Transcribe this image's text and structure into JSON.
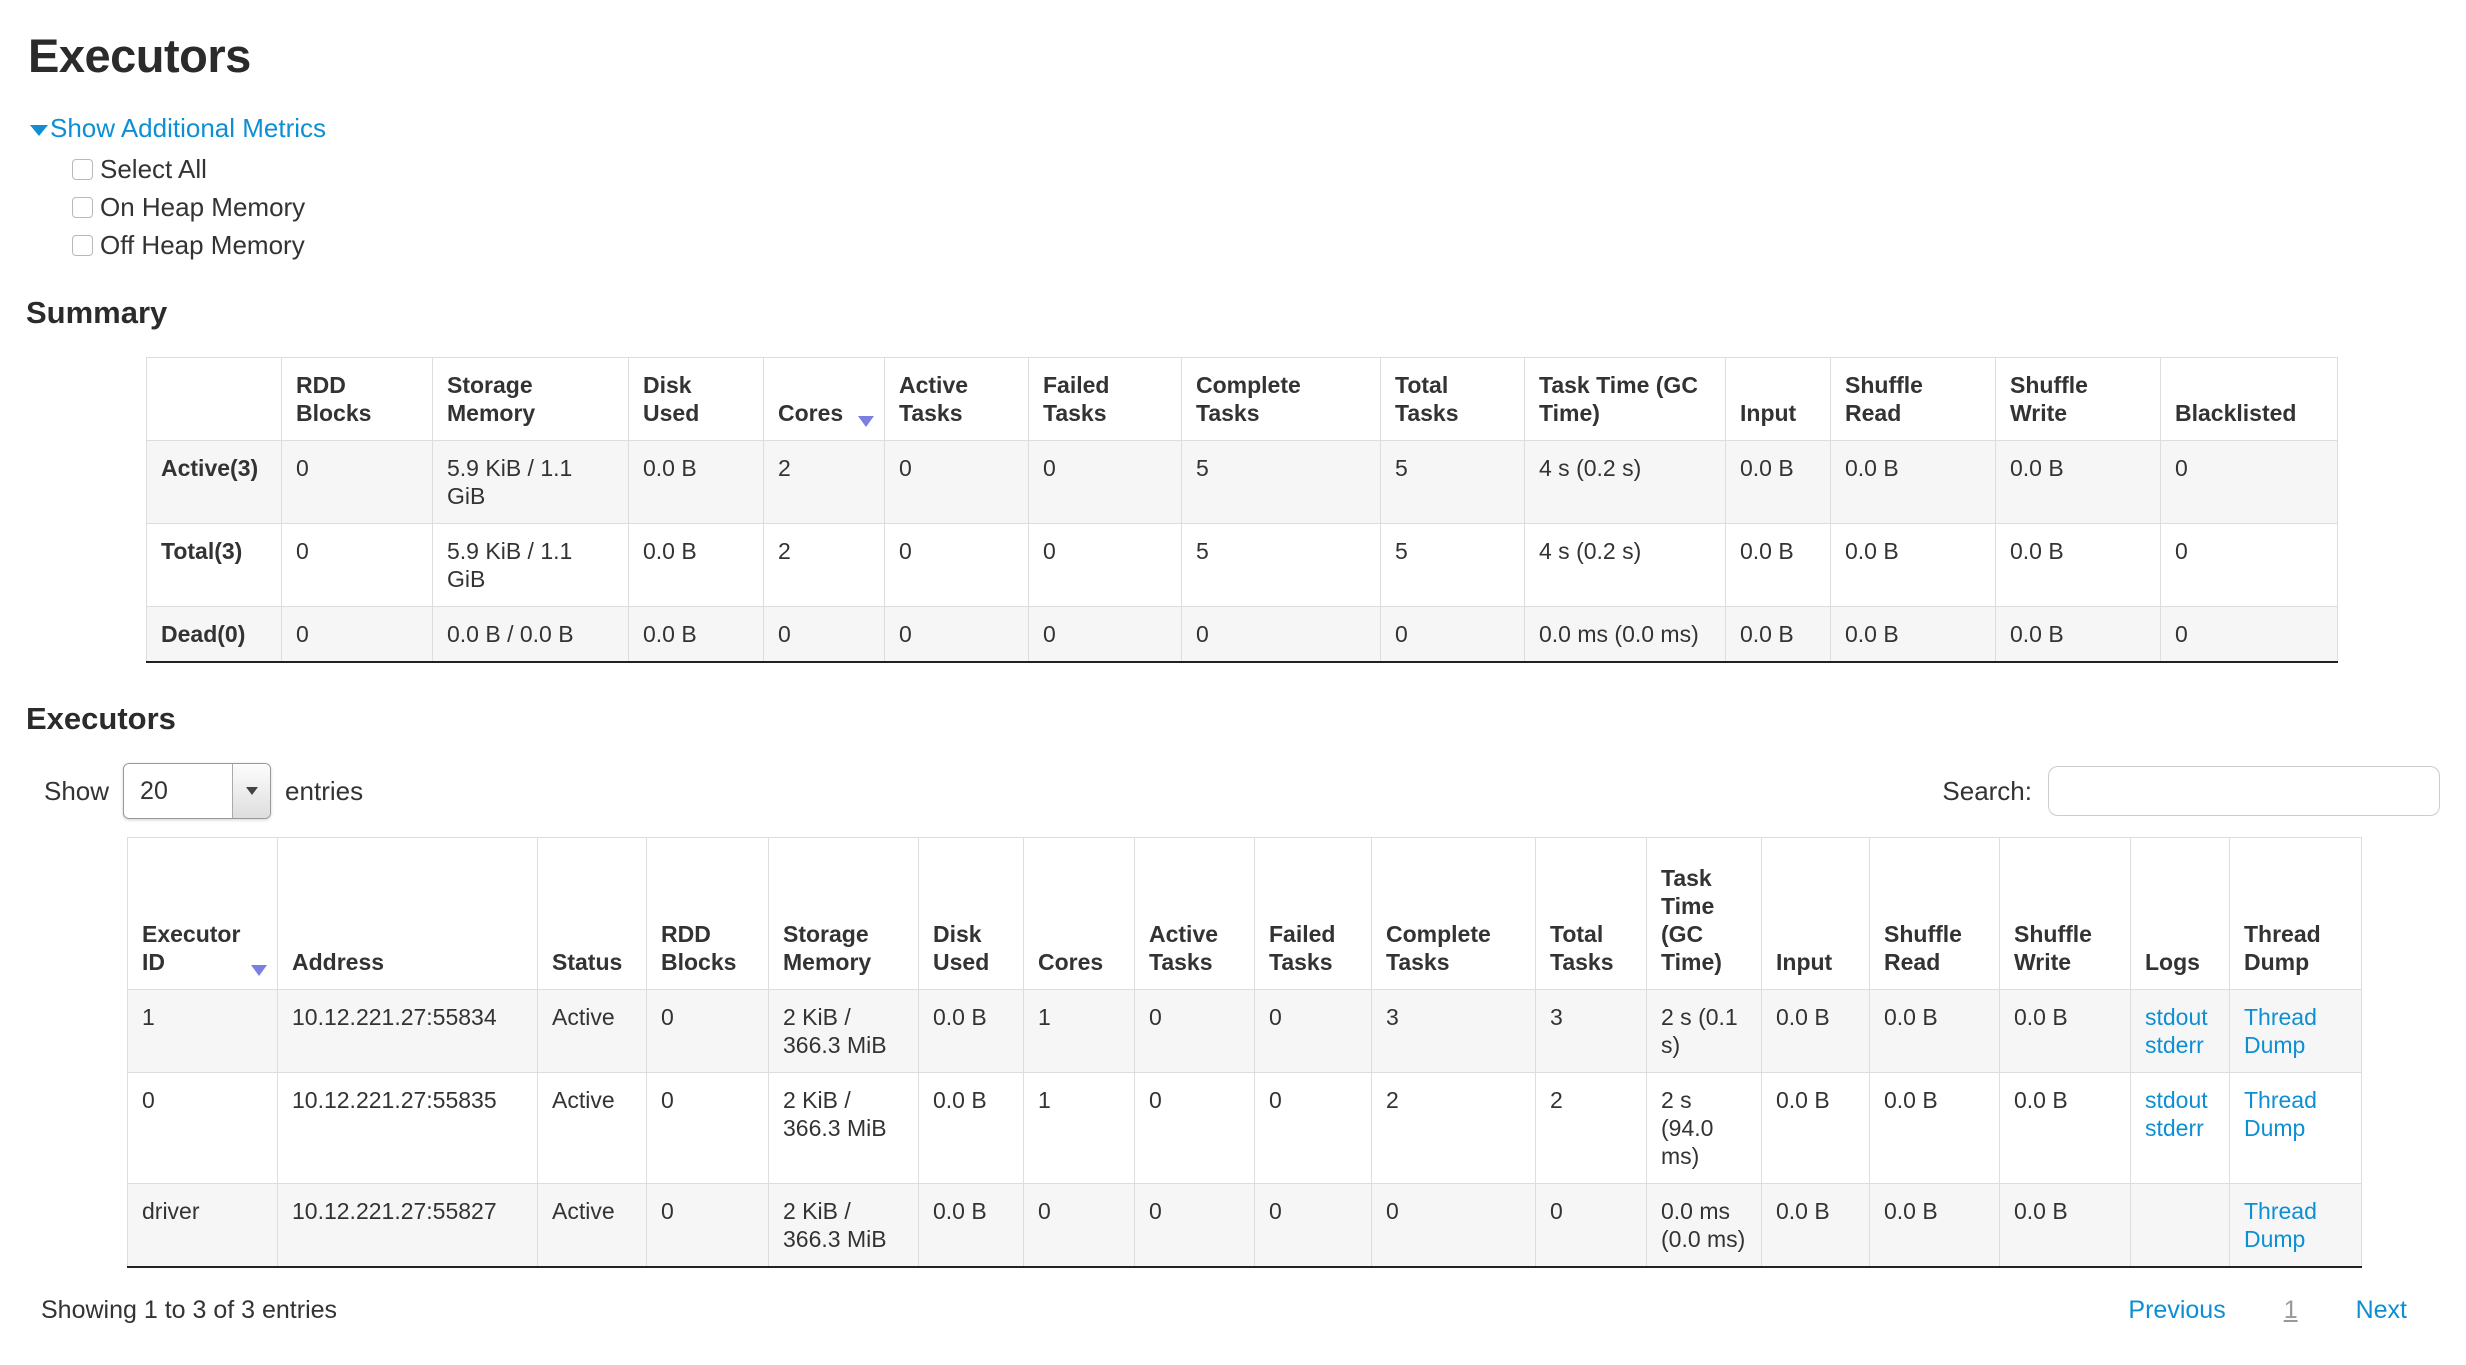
{
  "page": {
    "title": "Executors",
    "show_additional_metrics": "Show Additional Metrics",
    "metrics_checkboxes": [
      "Select All",
      "On Heap Memory",
      "Off Heap Memory"
    ],
    "summary_heading": "Summary",
    "executors_heading": "Executors"
  },
  "summary_table": {
    "columns": [
      "",
      "RDD Blocks",
      "Storage Memory",
      "Disk Used",
      "Cores",
      "Active Tasks",
      "Failed Tasks",
      "Complete Tasks",
      "Total Tasks",
      "Task Time (GC Time)",
      "Input",
      "Shuffle Read",
      "Shuffle Write",
      "Blacklisted"
    ],
    "sorted_column_index": 4,
    "rows": [
      {
        "label": "Active(3)",
        "cells": [
          "0",
          "5.9 KiB / 1.1 GiB",
          "0.0 B",
          "2",
          "0",
          "0",
          "5",
          "5",
          "4 s (0.2 s)",
          "0.0 B",
          "0.0 B",
          "0.0 B",
          "0"
        ]
      },
      {
        "label": "Total(3)",
        "cells": [
          "0",
          "5.9 KiB / 1.1 GiB",
          "0.0 B",
          "2",
          "0",
          "0",
          "5",
          "5",
          "4 s (0.2 s)",
          "0.0 B",
          "0.0 B",
          "0.0 B",
          "0"
        ]
      },
      {
        "label": "Dead(0)",
        "cells": [
          "0",
          "0.0 B / 0.0 B",
          "0.0 B",
          "0",
          "0",
          "0",
          "0",
          "0",
          "0.0 ms (0.0 ms)",
          "0.0 B",
          "0.0 B",
          "0.0 B",
          "0"
        ]
      }
    ]
  },
  "table_controls": {
    "show_label": "Show",
    "page_size": "20",
    "entries_label": "entries",
    "search_label": "Search:",
    "search_value": ""
  },
  "executors_table": {
    "columns": [
      "Executor ID",
      "Address",
      "Status",
      "RDD Blocks",
      "Storage Memory",
      "Disk Used",
      "Cores",
      "Active Tasks",
      "Failed Tasks",
      "Complete Tasks",
      "Total Tasks",
      "Task Time (GC Time)",
      "Input",
      "Shuffle Read",
      "Shuffle Write",
      "Logs",
      "Thread Dump"
    ],
    "sorted_column_index": 0,
    "rows": [
      {
        "executor_id": "1",
        "address": "10.12.221.27:55834",
        "status": "Active",
        "rdd_blocks": "0",
        "storage_memory": "2 KiB / 366.3 MiB",
        "disk_used": "0.0 B",
        "cores": "1",
        "active_tasks": "0",
        "failed_tasks": "0",
        "complete_tasks": "3",
        "total_tasks": "3",
        "task_time": "2 s (0.1 s)",
        "input": "0.0 B",
        "shuffle_read": "0.0 B",
        "shuffle_write": "0.0 B",
        "logs": [
          "stdout",
          "stderr"
        ],
        "thread_dump": "Thread Dump"
      },
      {
        "executor_id": "0",
        "address": "10.12.221.27:55835",
        "status": "Active",
        "rdd_blocks": "0",
        "storage_memory": "2 KiB / 366.3 MiB",
        "disk_used": "0.0 B",
        "cores": "1",
        "active_tasks": "0",
        "failed_tasks": "0",
        "complete_tasks": "2",
        "total_tasks": "2",
        "task_time": "2 s (94.0 ms)",
        "input": "0.0 B",
        "shuffle_read": "0.0 B",
        "shuffle_write": "0.0 B",
        "logs": [
          "stdout",
          "stderr"
        ],
        "thread_dump": "Thread Dump"
      },
      {
        "executor_id": "driver",
        "address": "10.12.221.27:55827",
        "status": "Active",
        "rdd_blocks": "0",
        "storage_memory": "2 KiB / 366.3 MiB",
        "disk_used": "0.0 B",
        "cores": "0",
        "active_tasks": "0",
        "failed_tasks": "0",
        "complete_tasks": "0",
        "total_tasks": "0",
        "task_time": "0.0 ms (0.0 ms)",
        "input": "0.0 B",
        "shuffle_read": "0.0 B",
        "shuffle_write": "0.0 B",
        "logs": [],
        "thread_dump": "Thread Dump"
      }
    ]
  },
  "footer": {
    "showing_text": "Showing 1 to 3 of 3 entries",
    "previous": "Previous",
    "current_page": "1",
    "next": "Next"
  },
  "colors": {
    "link_blue": "#0e8fd4",
    "sort_arrow": "#7b80e0",
    "stripe_row": "#f6f6f6",
    "table_border": "#dddddd"
  }
}
